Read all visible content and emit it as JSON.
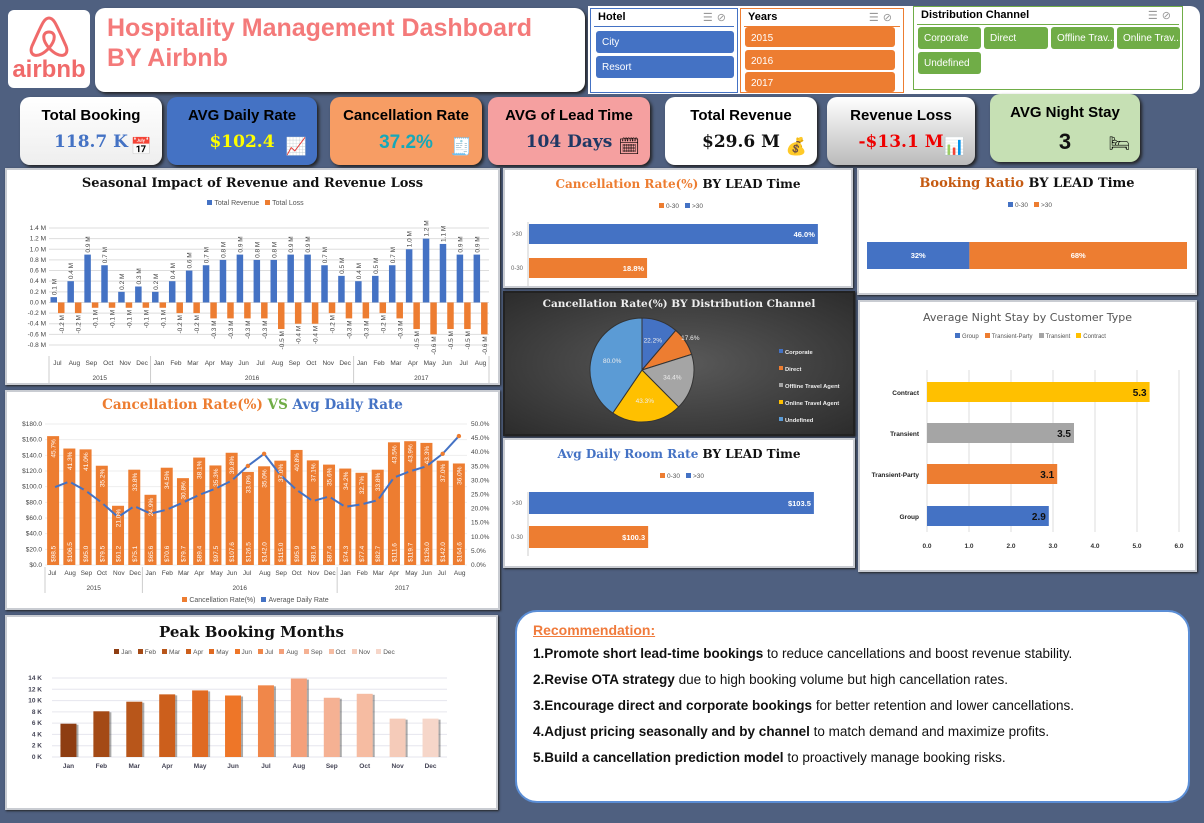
{
  "header": {
    "logo_text": "airbnb",
    "title_line1": "Hospitality Management Dashboard",
    "title_line2": "BY Airbnb"
  },
  "slicers": {
    "hotel": {
      "title": "Hotel",
      "items": [
        "City",
        "Resort"
      ],
      "color": "#4472c4"
    },
    "years": {
      "title": "Years",
      "items": [
        "2015",
        "2016",
        "2017"
      ],
      "color": "#ed7d31"
    },
    "channel": {
      "title": "Distribution Channel",
      "items": [
        "Corporate",
        "Direct",
        "Offline Trav...",
        "Online Trav...",
        "Undefined"
      ],
      "color": "#70ad47"
    }
  },
  "kpis": [
    {
      "label": "Total Booking",
      "value": "118.7 K",
      "icon": "calendar-icon"
    },
    {
      "label": "AVG Daily Rate",
      "value": "$102.4",
      "icon": "trend-chart-icon"
    },
    {
      "label": "Cancellation Rate",
      "value": "37.2%",
      "icon": "cancel-document-icon"
    },
    {
      "label": "AVG of Lead Time",
      "value": "104 Days",
      "icon": "calendar-clock-icon"
    },
    {
      "label": "Total Revenue",
      "value": "$29.6 M",
      "icon": "money-bag-icon"
    },
    {
      "label": "Revenue Loss",
      "value": "-$13.1 M",
      "icon": "bar-chart-icon"
    },
    {
      "label": "AVG Night Stay",
      "value": "3",
      "icon": "bed-icon"
    }
  ],
  "chart_data": [
    {
      "id": "seasonal",
      "type": "bar",
      "title": "Seasonal Impact of Revenue and Revenue Loss",
      "categories": [
        "Jul",
        "Aug",
        "Sep",
        "Oct",
        "Nov",
        "Dec",
        "Jan",
        "Feb",
        "Mar",
        "Apr",
        "May",
        "Jun",
        "Jul",
        "Aug",
        "Sep",
        "Oct",
        "Nov",
        "Dec",
        "Jan",
        "Feb",
        "Mar",
        "Apr",
        "May",
        "Jun",
        "Jul",
        "Aug"
      ],
      "groups": [
        {
          "label": "2015",
          "count": 6
        },
        {
          "label": "2016",
          "count": 12
        },
        {
          "label": "2017",
          "count": 8
        }
      ],
      "series": [
        {
          "name": "Total Revenue",
          "color": "#4472c4",
          "values": [
            0.1,
            0.4,
            0.9,
            0.7,
            0.2,
            0.3,
            0.2,
            0.4,
            0.6,
            0.7,
            0.8,
            0.9,
            0.8,
            0.8,
            0.9,
            0.9,
            0.7,
            0.5,
            0.4,
            0.5,
            0.7,
            1.0,
            1.2,
            1.1,
            0.9,
            0.9
          ]
        },
        {
          "name": "Total Loss",
          "color": "#ed7d31",
          "values": [
            -0.2,
            -0.2,
            -0.1,
            -0.1,
            -0.1,
            -0.1,
            -0.1,
            -0.2,
            -0.2,
            -0.3,
            -0.3,
            -0.3,
            -0.3,
            -0.5,
            -0.4,
            -0.4,
            -0.2,
            -0.3,
            -0.3,
            -0.2,
            -0.3,
            -0.5,
            -0.6,
            -0.5,
            -0.5,
            -0.6
          ]
        }
      ],
      "ylim": [
        -0.8,
        1.4
      ],
      "yticks": [
        "-0.8 M",
        "-0.6 M",
        "-0.4 M",
        "-0.2 M",
        "0.0 M",
        "0.2 M",
        "0.4 M",
        "0.6 M",
        "0.8 M",
        "1.0 M",
        "1.2 M",
        "1.4 M"
      ],
      "unit": " M",
      "grid": true,
      "legend": "top"
    },
    {
      "id": "cancel_vs_adr",
      "type": "bar+line",
      "title_parts": [
        {
          "text": "Cancellation Rate(%) ",
          "color": "#ed7d31"
        },
        {
          "text": "VS ",
          "color": "#70ad47"
        },
        {
          "text": "Avg Daily Rate",
          "color": "#4472c4"
        }
      ],
      "categories": [
        "Jul",
        "Aug",
        "Sep",
        "Oct",
        "Nov",
        "Dec",
        "Jan",
        "Feb",
        "Mar",
        "Apr",
        "May",
        "Jun",
        "Jul",
        "Aug",
        "Sep",
        "Oct",
        "Nov",
        "Dec",
        "Jan",
        "Feb",
        "Mar",
        "Apr",
        "May",
        "Jun",
        "Jul",
        "Aug"
      ],
      "groups": [
        {
          "label": "2015",
          "count": 6
        },
        {
          "label": "2016",
          "count": 12
        },
        {
          "label": "2017",
          "count": 8
        }
      ],
      "series": [
        {
          "name": "Cancellation Rate(%)",
          "color": "#ed7d31",
          "axis": "right",
          "values": [
            45.7,
            41.3,
            41.0,
            35.2,
            21.0,
            33.8,
            24.9,
            34.5,
            30.8,
            38.1,
            35.3,
            39.8,
            33.0,
            35.0,
            37.0,
            40.8,
            37.1,
            35.6,
            34.2,
            32.7,
            33.8,
            43.5,
            43.9,
            43.3,
            37.0,
            36.0
          ]
        },
        {
          "name": "Average Daily Rate",
          "color": "#4472c4",
          "axis": "left",
          "values": [
            98.5,
            106.5,
            95.0,
            79.5,
            61.2,
            75.1,
            65.6,
            70.6,
            79.7,
            89.4,
            97.5,
            107.6,
            126.5,
            142.0,
            115.0,
            95.9,
            81.6,
            87.4,
            74.3,
            77.4,
            82.7,
            111.6,
            119.7,
            126.0,
            142.0,
            164.6
          ]
        }
      ],
      "yleft": {
        "lim": [
          0,
          180
        ],
        "ticks": [
          "$0.0",
          "$20.0",
          "$40.0",
          "$60.0",
          "$80.0",
          "$100.0",
          "$120.0",
          "$140.0",
          "$160.0",
          "$180.0"
        ]
      },
      "yright": {
        "lim": [
          0,
          50
        ],
        "ticks": [
          "0.0%",
          "5.0%",
          "10.0%",
          "15.0%",
          "20.0%",
          "25.0%",
          "30.0%",
          "35.0%",
          "40.0%",
          "45.0%",
          "50.0%"
        ]
      },
      "legend": "bottom"
    },
    {
      "id": "peak",
      "type": "bar",
      "title": "Peak Booking Months",
      "categories": [
        "Jan",
        "Feb",
        "Mar",
        "Apr",
        "May",
        "Jun",
        "Jul",
        "Aug",
        "Sep",
        "Oct",
        "Nov",
        "Dec"
      ],
      "values": [
        5.9,
        8.1,
        9.8,
        11.1,
        11.8,
        10.9,
        12.7,
        13.9,
        10.5,
        11.2,
        6.8,
        6.8
      ],
      "colors": [
        "#8e3d12",
        "#a44a16",
        "#b8561a",
        "#cc5f1c",
        "#e06a22",
        "#ee7628",
        "#f0874a",
        "#f4a07a",
        "#f5b193",
        "#f6bca2",
        "#f5cbb9",
        "#f6d6c9"
      ],
      "ylim": [
        0,
        14
      ],
      "yticks": [
        "0 K",
        "2 K",
        "4 K",
        "6 K",
        "8 K",
        "10 K",
        "12 K",
        "14 K"
      ],
      "legend": "top"
    },
    {
      "id": "cancel_lead",
      "type": "hbar",
      "title_parts": [
        {
          "text": "Cancellation Rate(%) ",
          "color": "#ed7d31"
        },
        {
          "text": "BY LEAD Time",
          "color": "#111"
        }
      ],
      "categories": [
        ">30",
        "0-30"
      ],
      "values": [
        46.0,
        18.8
      ],
      "labels": [
        "46.0%",
        "18.8%"
      ],
      "colors": [
        "#4472c4",
        "#ed7d31"
      ],
      "legend_items": [
        {
          "name": "0-30",
          "color": "#ed7d31"
        },
        {
          "name": ">30",
          "color": "#4472c4"
        }
      ]
    },
    {
      "id": "booking_ratio",
      "type": "stacked-bar",
      "title_parts": [
        {
          "text": "Booking Ratio ",
          "color": "#c55a11"
        },
        {
          "text": "BY LEAD Time",
          "color": "#111"
        }
      ],
      "values": [
        32,
        68
      ],
      "labels": [
        "32%",
        "68%"
      ],
      "colors": [
        "#4472c4",
        "#ed7d31"
      ],
      "legend_items": [
        {
          "name": "0-30",
          "color": "#4472c4"
        },
        {
          "name": ">30",
          "color": "#ed7d31"
        }
      ]
    },
    {
      "id": "channel_pie",
      "type": "pie",
      "title": "Cancellation Rate(%) BY Distribution Channel",
      "categories": [
        "Corporate",
        "Direct",
        "Offline Travel Agent",
        "Online Travel Agent",
        "Undefined"
      ],
      "values": [
        22.2,
        17.6,
        34.4,
        43.3,
        80.0
      ],
      "labels": [
        "22.2%",
        "17.6%",
        "34.4%",
        "43.3%",
        "80.0%"
      ],
      "colors": [
        "#4472c4",
        "#ed7d31",
        "#a5a5a5",
        "#ffc000",
        "#5b9bd5"
      ],
      "legend": "right"
    },
    {
      "id": "adr_lead",
      "type": "hbar",
      "title_parts": [
        {
          "text": "Avg Daily Room Rate ",
          "color": "#4472c4"
        },
        {
          "text": "BY LEAD Time",
          "color": "#111"
        }
      ],
      "categories": [
        ">30",
        "0-30"
      ],
      "values": [
        103.5,
        100.3
      ],
      "labels": [
        "$103.5",
        "$100.3"
      ],
      "colors": [
        "#4472c4",
        "#ed7d31"
      ],
      "legend_items": [
        {
          "name": "0-30",
          "color": "#ed7d31"
        },
        {
          "name": ">30",
          "color": "#4472c4"
        }
      ]
    },
    {
      "id": "night_stay",
      "type": "hbar",
      "title": "Average Night Stay by Customer Type",
      "categories": [
        "Contract",
        "Transient",
        "Transient-Party",
        "Group"
      ],
      "values": [
        5.3,
        3.5,
        3.1,
        2.9
      ],
      "labels": [
        "5.3",
        "3.5",
        "3.1",
        "2.9"
      ],
      "colors": [
        "#ffc000",
        "#a5a5a5",
        "#ed7d31",
        "#4472c4"
      ],
      "xlim": [
        0,
        6
      ],
      "xticks": [
        "0.0",
        "1.0",
        "2.0",
        "3.0",
        "4.0",
        "5.0",
        "6.0"
      ],
      "legend_items": [
        {
          "name": "Group",
          "color": "#4472c4"
        },
        {
          "name": "Transient-Party",
          "color": "#ed7d31"
        },
        {
          "name": "Transient",
          "color": "#a5a5a5"
        },
        {
          "name": "Contract",
          "color": "#ffc000"
        }
      ]
    }
  ],
  "recommendation": {
    "title": "Recommendation:",
    "items": [
      {
        "bold": "1.Promote short lead-time bookings",
        "rest": " to reduce cancellations and boost revenue stability."
      },
      {
        "bold": "2.Revise OTA strategy",
        "rest": " due to high booking volume but high cancellation rates."
      },
      {
        "bold": "3.Encourage direct and corporate bookings",
        "rest": " for better retention and lower cancellations."
      },
      {
        "bold": "4.Adjust pricing seasonally and by channel",
        "rest": " to match demand and maximize profits."
      },
      {
        "bold": "5.Build a cancellation prediction model",
        "rest": " to proactively manage booking risks."
      }
    ]
  }
}
